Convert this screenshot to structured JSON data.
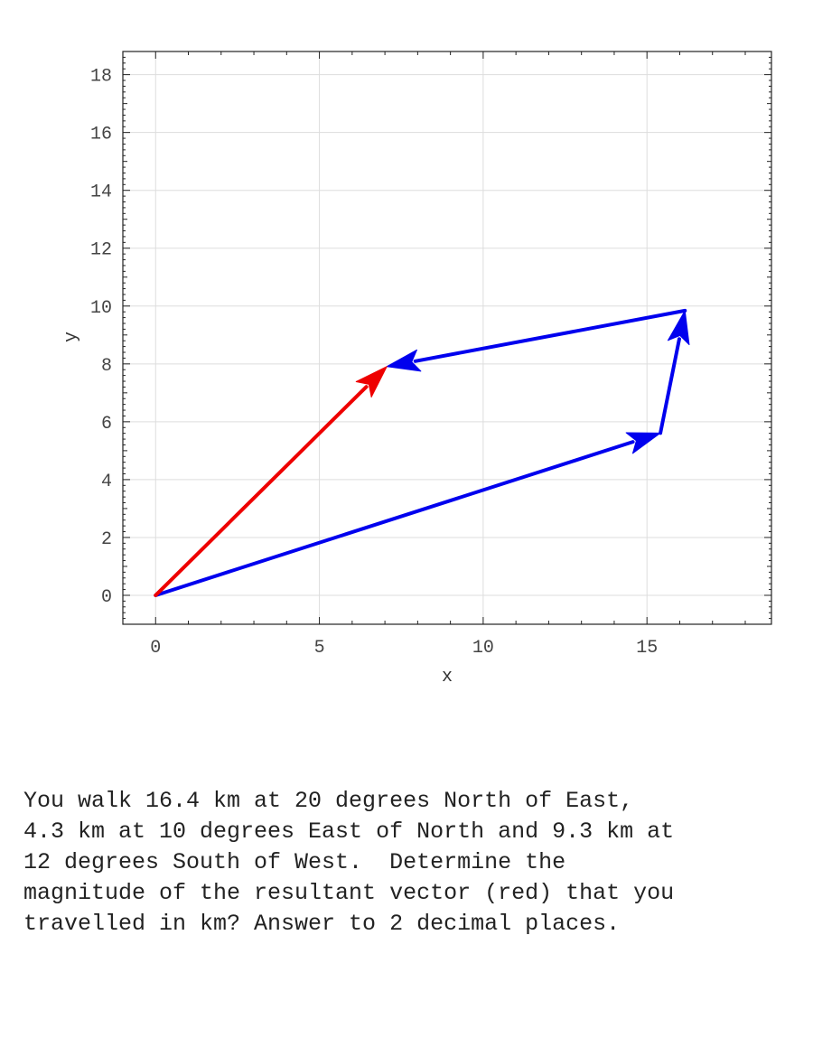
{
  "chart_data": {
    "type": "vector-diagram",
    "title": "",
    "xlabel": "x",
    "ylabel": "y",
    "xlim": [
      -1,
      18.8
    ],
    "ylim": [
      -1,
      18.8
    ],
    "xticks": [
      0,
      5,
      10,
      15
    ],
    "yticks": [
      0,
      2,
      4,
      6,
      8,
      10,
      12,
      14,
      16,
      18
    ],
    "grid": true,
    "vectors": [
      {
        "role": "component",
        "color": "#0000ee",
        "from": [
          0,
          0
        ],
        "to": [
          15.41,
          5.61
        ]
      },
      {
        "role": "component",
        "color": "#0000ee",
        "from": [
          15.41,
          5.61
        ],
        "to": [
          16.16,
          9.84
        ]
      },
      {
        "role": "component",
        "color": "#0000ee",
        "from": [
          16.16,
          9.84
        ],
        "to": [
          7.06,
          7.91
        ]
      },
      {
        "role": "resultant",
        "color": "#ee0000",
        "from": [
          0,
          0
        ],
        "to": [
          7.06,
          7.91
        ]
      }
    ]
  },
  "question": {
    "lines": [
      "You walk 16.4 km at 20 degrees North of East,",
      "4.3 km at 10 degrees East of North and 9.3 km at",
      "12 degrees South of West.  Determine the",
      "magnitude of the resultant vector (red) that you",
      "travelled in km? Answer to 2 decimal places."
    ]
  }
}
